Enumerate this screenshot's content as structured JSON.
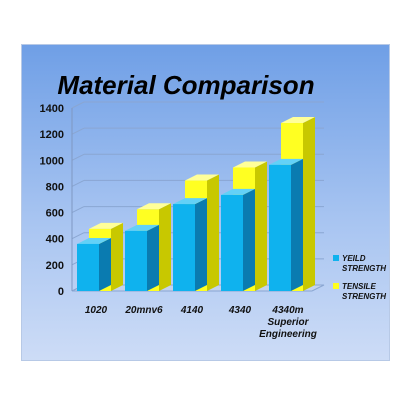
{
  "chart_data": {
    "type": "bar",
    "title": "Material Comparison",
    "categories": [
      "1020",
      "20mnv6",
      "4140",
      "4340",
      "4340m\nSuperior\nEngineering"
    ],
    "series": [
      {
        "name": "YEILD STRENGTH",
        "values": [
          360,
          460,
          665,
          735,
          965
        ]
      },
      {
        "name": "TENSILE STRENGTH",
        "values": [
          475,
          625,
          845,
          945,
          1285
        ]
      }
    ],
    "y_ticks": [
      0,
      200,
      400,
      600,
      800,
      1000,
      1200,
      1400
    ],
    "ylim": [
      0,
      1400
    ],
    "grid": true,
    "legend_position": "right",
    "colors": {
      "yield_front": "#0fb2ee",
      "yield_side": "#0a7bb0",
      "yield_top": "#63d1f7",
      "tensile_front": "#ffff22",
      "tensile_side": "#c8c800",
      "tensile_top": "#ffff99",
      "grid": "#8aa6d2"
    }
  }
}
